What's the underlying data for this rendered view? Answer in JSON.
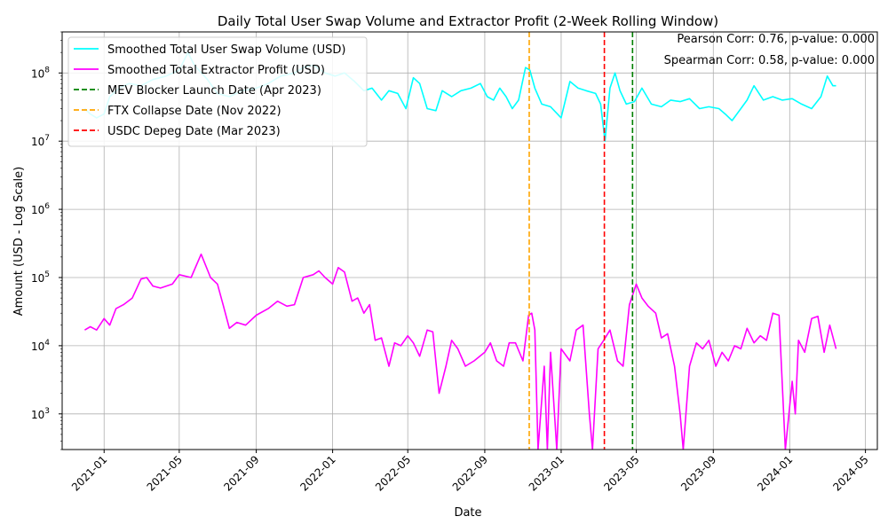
{
  "chart_data": {
    "type": "line",
    "title": "Daily Total User Swap Volume and Extractor Profit (2-Week Rolling Window)",
    "xlabel": "Date",
    "ylabel": "Amount (USD - Log Scale)",
    "yscale": "log",
    "grid": true,
    "legend_position": "top-left",
    "x_range": [
      "2020-10-26",
      "2024-05-20"
    ],
    "y_range": [
      300,
      400000000
    ],
    "x_ticks": [
      "2021-01",
      "2021-05",
      "2021-09",
      "2022-01",
      "2022-05",
      "2022-09",
      "2023-01",
      "2023-05",
      "2023-09",
      "2024-01",
      "2024-05"
    ],
    "y_ticks": [
      {
        "value": 1000,
        "base": "10",
        "exp": "3"
      },
      {
        "value": 10000,
        "base": "10",
        "exp": "4"
      },
      {
        "value": 100000,
        "base": "10",
        "exp": "5"
      },
      {
        "value": 1000000,
        "base": "10",
        "exp": "6"
      },
      {
        "value": 10000000,
        "base": "10",
        "exp": "7"
      },
      {
        "value": 100000000,
        "base": "10",
        "exp": "8"
      }
    ],
    "series": [
      {
        "name": "Smoothed Total User Swap Volume (USD)",
        "color": "#00ffff",
        "style": "solid",
        "points": [
          [
            "2020-12-01",
            30000000
          ],
          [
            "2020-12-10",
            25000000
          ],
          [
            "2020-12-20",
            22000000
          ],
          [
            "2021-01-01",
            25000000
          ],
          [
            "2021-01-10",
            45000000
          ],
          [
            "2021-01-25",
            60000000
          ],
          [
            "2021-02-10",
            70000000
          ],
          [
            "2021-03-01",
            65000000
          ],
          [
            "2021-03-20",
            80000000
          ],
          [
            "2021-04-10",
            90000000
          ],
          [
            "2021-05-01",
            110000000
          ],
          [
            "2021-05-15",
            200000000
          ],
          [
            "2021-05-25",
            130000000
          ],
          [
            "2021-06-15",
            80000000
          ],
          [
            "2021-07-01",
            50000000
          ],
          [
            "2021-07-20",
            45000000
          ],
          [
            "2021-08-10",
            55000000
          ],
          [
            "2021-09-01",
            60000000
          ],
          [
            "2021-09-20",
            70000000
          ],
          [
            "2021-10-10",
            90000000
          ],
          [
            "2021-11-01",
            100000000
          ],
          [
            "2021-11-15",
            120000000
          ],
          [
            "2021-12-01",
            130000000
          ],
          [
            "2021-12-20",
            100000000
          ],
          [
            "2022-01-05",
            90000000
          ],
          [
            "2022-01-20",
            100000000
          ],
          [
            "2022-02-05",
            75000000
          ],
          [
            "2022-02-20",
            55000000
          ],
          [
            "2022-03-05",
            60000000
          ],
          [
            "2022-03-20",
            40000000
          ],
          [
            "2022-04-01",
            55000000
          ],
          [
            "2022-04-15",
            50000000
          ],
          [
            "2022-04-28",
            30000000
          ],
          [
            "2022-05-10",
            85000000
          ],
          [
            "2022-05-20",
            70000000
          ],
          [
            "2022-06-01",
            30000000
          ],
          [
            "2022-06-15",
            28000000
          ],
          [
            "2022-06-25",
            55000000
          ],
          [
            "2022-07-10",
            45000000
          ],
          [
            "2022-07-25",
            55000000
          ],
          [
            "2022-08-10",
            60000000
          ],
          [
            "2022-08-25",
            70000000
          ],
          [
            "2022-09-05",
            45000000
          ],
          [
            "2022-09-15",
            40000000
          ],
          [
            "2022-09-25",
            60000000
          ],
          [
            "2022-10-05",
            45000000
          ],
          [
            "2022-10-15",
            30000000
          ],
          [
            "2022-10-25",
            40000000
          ],
          [
            "2022-11-05",
            120000000
          ],
          [
            "2022-11-12",
            110000000
          ],
          [
            "2022-11-20",
            60000000
          ],
          [
            "2022-12-01",
            35000000
          ],
          [
            "2022-12-15",
            32000000
          ],
          [
            "2023-01-01",
            22000000
          ],
          [
            "2023-01-15",
            75000000
          ],
          [
            "2023-01-28",
            60000000
          ],
          [
            "2023-02-10",
            55000000
          ],
          [
            "2023-02-25",
            50000000
          ],
          [
            "2023-03-05",
            35000000
          ],
          [
            "2023-03-12",
            10000000
          ],
          [
            "2023-03-20",
            60000000
          ],
          [
            "2023-03-28",
            100000000
          ],
          [
            "2023-04-05",
            55000000
          ],
          [
            "2023-04-15",
            35000000
          ],
          [
            "2023-04-28",
            38000000
          ],
          [
            "2023-05-10",
            60000000
          ],
          [
            "2023-05-25",
            35000000
          ],
          [
            "2023-06-10",
            32000000
          ],
          [
            "2023-06-25",
            40000000
          ],
          [
            "2023-07-10",
            38000000
          ],
          [
            "2023-07-25",
            42000000
          ],
          [
            "2023-08-10",
            30000000
          ],
          [
            "2023-08-25",
            32000000
          ],
          [
            "2023-09-10",
            30000000
          ],
          [
            "2023-09-20",
            25000000
          ],
          [
            "2023-10-01",
            20000000
          ],
          [
            "2023-10-15",
            30000000
          ],
          [
            "2023-10-25",
            40000000
          ],
          [
            "2023-11-05",
            65000000
          ],
          [
            "2023-11-20",
            40000000
          ],
          [
            "2023-12-05",
            45000000
          ],
          [
            "2023-12-20",
            40000000
          ],
          [
            "2024-01-05",
            42000000
          ],
          [
            "2024-01-20",
            35000000
          ],
          [
            "2024-02-05",
            30000000
          ],
          [
            "2024-02-20",
            45000000
          ],
          [
            "2024-03-01",
            90000000
          ],
          [
            "2024-03-10",
            65000000
          ],
          [
            "2024-03-15",
            65000000
          ]
        ]
      },
      {
        "name": "Smoothed Total Extractor Profit (USD)",
        "color": "#ff00ff",
        "style": "solid",
        "points": [
          [
            "2020-12-01",
            17000
          ],
          [
            "2020-12-10",
            19000
          ],
          [
            "2020-12-20",
            17000
          ],
          [
            "2021-01-01",
            25000
          ],
          [
            "2021-01-10",
            20000
          ],
          [
            "2021-01-20",
            35000
          ],
          [
            "2021-02-01",
            40000
          ],
          [
            "2021-02-15",
            50000
          ],
          [
            "2021-03-01",
            95000
          ],
          [
            "2021-03-10",
            100000
          ],
          [
            "2021-03-20",
            75000
          ],
          [
            "2021-04-01",
            70000
          ],
          [
            "2021-04-20",
            80000
          ],
          [
            "2021-05-01",
            110000
          ],
          [
            "2021-05-20",
            100000
          ],
          [
            "2021-06-05",
            220000
          ],
          [
            "2021-06-20",
            100000
          ],
          [
            "2021-07-01",
            80000
          ],
          [
            "2021-07-10",
            40000
          ],
          [
            "2021-07-20",
            18000
          ],
          [
            "2021-08-01",
            22000
          ],
          [
            "2021-08-15",
            20000
          ],
          [
            "2021-09-01",
            28000
          ],
          [
            "2021-09-20",
            35000
          ],
          [
            "2021-10-05",
            45000
          ],
          [
            "2021-10-20",
            38000
          ],
          [
            "2021-11-01",
            40000
          ],
          [
            "2021-11-15",
            100000
          ],
          [
            "2021-12-01",
            110000
          ],
          [
            "2021-12-10",
            125000
          ],
          [
            "2021-12-20",
            100000
          ],
          [
            "2022-01-01",
            80000
          ],
          [
            "2022-01-10",
            140000
          ],
          [
            "2022-01-20",
            120000
          ],
          [
            "2022-02-01",
            45000
          ],
          [
            "2022-02-10",
            50000
          ],
          [
            "2022-02-20",
            30000
          ],
          [
            "2022-03-01",
            40000
          ],
          [
            "2022-03-10",
            12000
          ],
          [
            "2022-03-20",
            13000
          ],
          [
            "2022-04-01",
            5000
          ],
          [
            "2022-04-10",
            11000
          ],
          [
            "2022-04-20",
            10000
          ],
          [
            "2022-05-01",
            14000
          ],
          [
            "2022-05-10",
            11000
          ],
          [
            "2022-05-20",
            7000
          ],
          [
            "2022-06-01",
            17000
          ],
          [
            "2022-06-10",
            16000
          ],
          [
            "2022-06-20",
            2000
          ],
          [
            "2022-07-01",
            5000
          ],
          [
            "2022-07-10",
            12000
          ],
          [
            "2022-07-20",
            9000
          ],
          [
            "2022-08-01",
            5000
          ],
          [
            "2022-08-15",
            6000
          ],
          [
            "2022-09-01",
            8000
          ],
          [
            "2022-09-10",
            11000
          ],
          [
            "2022-09-20",
            6000
          ],
          [
            "2022-10-01",
            5000
          ],
          [
            "2022-10-10",
            11000
          ],
          [
            "2022-10-20",
            11000
          ],
          [
            "2022-11-01",
            6000
          ],
          [
            "2022-11-10",
            28000
          ],
          [
            "2022-11-15",
            30000
          ],
          [
            "2022-11-20",
            17000
          ],
          [
            "2022-11-25",
            300
          ],
          [
            "2022-12-05",
            5000
          ],
          [
            "2022-12-10",
            300
          ],
          [
            "2022-12-15",
            8000
          ],
          [
            "2022-12-25",
            300
          ],
          [
            "2023-01-01",
            9000
          ],
          [
            "2023-01-15",
            6000
          ],
          [
            "2023-01-25",
            17000
          ],
          [
            "2023-02-05",
            20000
          ],
          [
            "2023-02-15",
            1000
          ],
          [
            "2023-02-20",
            300
          ],
          [
            "2023-03-01",
            9000
          ],
          [
            "2023-03-10",
            12000
          ],
          [
            "2023-03-20",
            17000
          ],
          [
            "2023-04-01",
            6000
          ],
          [
            "2023-04-10",
            5000
          ],
          [
            "2023-04-20",
            40000
          ],
          [
            "2023-05-01",
            80000
          ],
          [
            "2023-05-10",
            50000
          ],
          [
            "2023-05-20",
            38000
          ],
          [
            "2023-06-01",
            30000
          ],
          [
            "2023-06-10",
            13000
          ],
          [
            "2023-06-20",
            15000
          ],
          [
            "2023-07-01",
            5000
          ],
          [
            "2023-07-10",
            1000
          ],
          [
            "2023-07-15",
            300
          ],
          [
            "2023-07-25",
            5000
          ],
          [
            "2023-08-05",
            11000
          ],
          [
            "2023-08-15",
            9000
          ],
          [
            "2023-08-25",
            12000
          ],
          [
            "2023-09-05",
            5000
          ],
          [
            "2023-09-15",
            8000
          ],
          [
            "2023-09-25",
            6000
          ],
          [
            "2023-10-05",
            10000
          ],
          [
            "2023-10-15",
            9000
          ],
          [
            "2023-10-25",
            18000
          ],
          [
            "2023-11-05",
            11000
          ],
          [
            "2023-11-15",
            14000
          ],
          [
            "2023-11-25",
            12000
          ],
          [
            "2023-12-05",
            30000
          ],
          [
            "2023-12-15",
            28000
          ],
          [
            "2023-12-25",
            300
          ],
          [
            "2024-01-05",
            3000
          ],
          [
            "2024-01-10",
            1000
          ],
          [
            "2024-01-15",
            12000
          ],
          [
            "2024-01-25",
            8000
          ],
          [
            "2024-02-05",
            25000
          ],
          [
            "2024-02-15",
            27000
          ],
          [
            "2024-02-25",
            8000
          ],
          [
            "2024-03-05",
            20000
          ],
          [
            "2024-03-15",
            9000
          ]
        ]
      }
    ],
    "events": [
      {
        "name": "MEV Blocker Launch Date (Apr 2023)",
        "date": "2023-04-25",
        "color": "#008000",
        "style": "dashed"
      },
      {
        "name": "FTX Collapse Date (Nov 2022)",
        "date": "2022-11-11",
        "color": "#ffa500",
        "style": "dashed"
      },
      {
        "name": "USDC Depeg Date (Mar 2023)",
        "date": "2023-03-11",
        "color": "#ff0000",
        "style": "dashed"
      }
    ],
    "annotations": [
      "Pearson Corr: 0.76, p-value: 0.000",
      "Spearman Corr: 0.58, p-value: 0.000"
    ]
  }
}
